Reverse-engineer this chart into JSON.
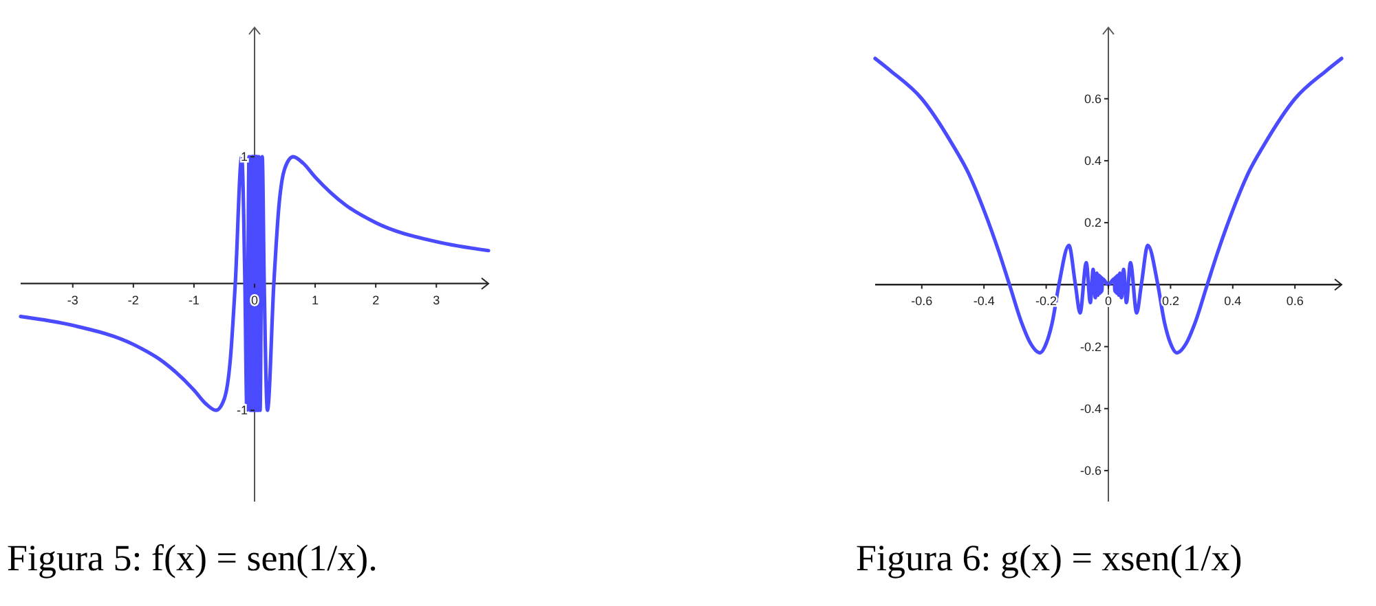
{
  "chart_data": [
    {
      "type": "line",
      "title": "Figura 5: f(x) = sen(1/x).",
      "x": [
        -3.86,
        -3,
        -2,
        -1.5,
        -1,
        -0.8,
        -0.637,
        -0.5,
        -0.4,
        -0.318,
        -0.212,
        -0.159,
        -0.127,
        -0.091,
        -0.071,
        -0.058,
        -0.049,
        -0.042,
        -0.037,
        -0.034,
        -0.03,
        -0.028,
        -0.026,
        -0.024,
        -0.022,
        -0.021,
        -0.019,
        0.019,
        0.021,
        0.022,
        0.024,
        0.026,
        0.028,
        0.03,
        0.034,
        0.037,
        0.042,
        0.049,
        0.058,
        0.071,
        0.091,
        0.127,
        0.159,
        0.212,
        0.318,
        0.4,
        0.5,
        0.637,
        0.8,
        1,
        1.5,
        2,
        3,
        3.86
      ],
      "series": [
        {
          "color": "#4a4aff",
          "values": [
            -0.26,
            -0.33,
            -0.48,
            -0.62,
            -0.84,
            -0.95,
            -1,
            -0.91,
            -0.6,
            0,
            1,
            0,
            -1,
            1,
            -1,
            1,
            -1,
            1,
            -1,
            1,
            -1,
            1,
            -1,
            1,
            -1,
            1,
            -1,
            1,
            -1,
            1,
            -1,
            1,
            -1,
            1,
            -1,
            1,
            -1,
            1,
            -1,
            1,
            -1,
            1,
            0,
            -1,
            0,
            0.6,
            0.91,
            1,
            0.95,
            0.84,
            0.62,
            0.48,
            0.33,
            0.26
          ]
        }
      ],
      "xlim": [
        -3.86,
        3.86
      ],
      "ylim": [
        -1.72,
        2.02
      ],
      "xticks": [
        -3,
        -2,
        -1,
        0,
        1,
        2,
        3
      ],
      "yticks": [
        -1,
        1
      ],
      "grid": false
    },
    {
      "type": "line",
      "title": "Figura 6: g(x) = xsen(1/x)",
      "x": [
        -0.75,
        -0.7,
        -0.6,
        -0.5,
        -0.45,
        -0.4,
        -0.35,
        -0.318,
        -0.28,
        -0.25,
        -0.22,
        -0.2,
        -0.18,
        -0.159,
        -0.127,
        -0.106,
        -0.091,
        -0.071,
        -0.058,
        -0.049,
        -0.042,
        -0.037,
        -0.034,
        -0.03,
        -0.028,
        -0.026,
        -0.024,
        -0.022,
        -0.021,
        -0.019,
        0,
        0.019,
        0.021,
        0.022,
        0.024,
        0.026,
        0.028,
        0.03,
        0.034,
        0.037,
        0.042,
        0.049,
        0.058,
        0.071,
        0.091,
        0.106,
        0.127,
        0.159,
        0.18,
        0.2,
        0.22,
        0.25,
        0.28,
        0.318,
        0.35,
        0.4,
        0.45,
        0.5,
        0.6,
        0.7,
        0.75
      ],
      "series": [
        {
          "color": "#4a4aff",
          "values": [
            0.73,
            0.69,
            0.6,
            0.45,
            0.36,
            0.24,
            0.1,
            0,
            -0.12,
            -0.19,
            -0.22,
            -0.19,
            -0.12,
            0,
            0.127,
            0,
            -0.091,
            0.071,
            -0.058,
            0.049,
            -0.042,
            0.037,
            -0.034,
            0.03,
            -0.028,
            0.026,
            -0.024,
            0.022,
            -0.021,
            0.019,
            0,
            0.019,
            -0.021,
            0.022,
            -0.024,
            0.026,
            -0.028,
            0.03,
            -0.034,
            0.037,
            -0.042,
            0.049,
            -0.058,
            0.071,
            -0.091,
            0,
            0.127,
            0,
            -0.12,
            -0.19,
            -0.22,
            -0.19,
            -0.12,
            0,
            0.1,
            0.24,
            0.36,
            0.45,
            0.6,
            0.69,
            0.73
          ]
        }
      ],
      "xlim": [
        -0.75,
        0.75
      ],
      "ylim": [
        -0.7,
        0.83
      ],
      "xticks": [
        -0.6,
        -0.4,
        -0.2,
        0,
        0.2,
        0.4,
        0.6
      ],
      "yticks": [
        -0.6,
        -0.4,
        -0.2,
        0.2,
        0.4,
        0.6
      ],
      "grid": false
    }
  ]
}
